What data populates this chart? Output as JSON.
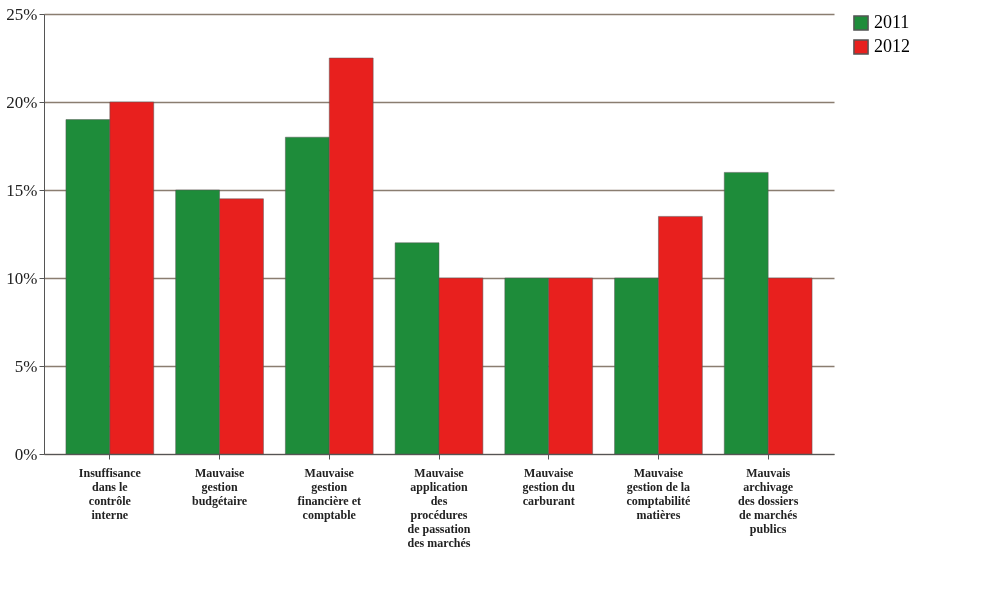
{
  "chart_data": {
    "type": "bar",
    "categories": [
      "Insuffisance\ndans le\ncontrôle\ninterne",
      "Mauvaise\ngestion\nbudgétaire",
      "Mauvaise\ngestion\nfinancière et\ncomptable",
      "Mauvaise\napplication\ndes\nprocédures\nde passation\ndes marchés",
      "Mauvaise\ngestion du\ncarburant",
      "Mauvaise\ngestion de la\ncomptabilité\nmatières",
      "Mauvais\narchivage\ndes dossiers\nde marchés\npublics"
    ],
    "series": [
      {
        "name": "2011",
        "color": "#1e8c3a",
        "values": [
          19,
          15,
          18,
          12,
          10,
          10,
          16
        ]
      },
      {
        "name": "2012",
        "color": "#e8201e",
        "values": [
          20,
          14.5,
          22.5,
          10,
          10,
          13.5,
          10
        ]
      }
    ],
    "ylim": [
      0,
      25
    ],
    "yticks": [
      {
        "value": 0,
        "label": "0%"
      },
      {
        "value": 5,
        "label": "5%"
      },
      {
        "value": 10,
        "label": "10%"
      },
      {
        "value": 15,
        "label": "15%"
      },
      {
        "value": 20,
        "label": "20%"
      },
      {
        "value": 25,
        "label": "25%"
      }
    ],
    "grid": "y",
    "legend": "right"
  }
}
